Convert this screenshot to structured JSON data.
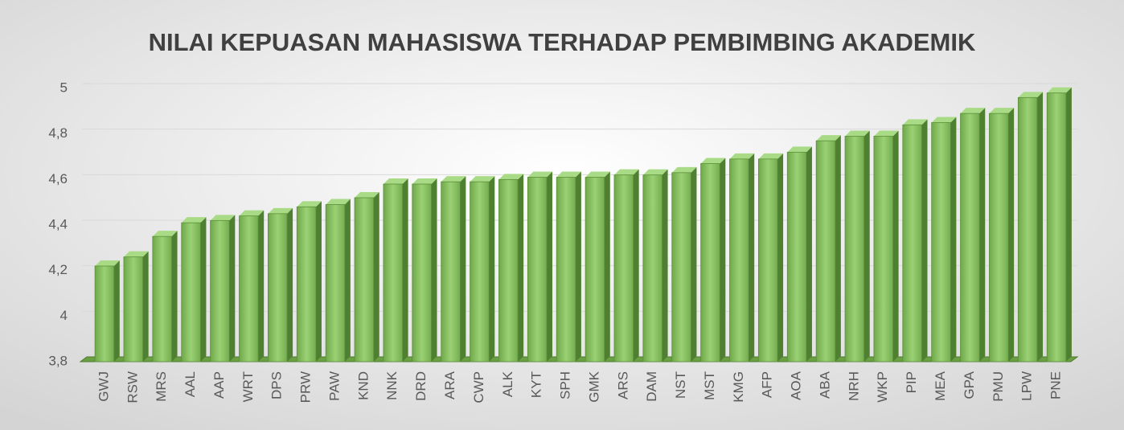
{
  "chart_data": {
    "type": "bar",
    "title": "NILAI KEPUASAN MAHASISWA TERHADAP PEMBIMBING AKADEMIK",
    "categories": [
      "GWJ",
      "RSW",
      "MRS",
      "AAL",
      "AAP",
      "WRT",
      "DPS",
      "PRW",
      "PAW",
      "KND",
      "NNK",
      "DRD",
      "ARA",
      "CWP",
      "ALK",
      "KYT",
      "SPH",
      "GMK",
      "ARS",
      "DAM",
      "NST",
      "MST",
      "KMG",
      "AFP",
      "AOA",
      "ABA",
      "NRH",
      "WKP",
      "PIP",
      "MEA",
      "GPA",
      "PMU",
      "LPW",
      "PNE"
    ],
    "values": [
      4.22,
      4.26,
      4.35,
      4.41,
      4.42,
      4.44,
      4.45,
      4.48,
      4.49,
      4.52,
      4.58,
      4.58,
      4.59,
      4.59,
      4.6,
      4.61,
      4.61,
      4.61,
      4.62,
      4.62,
      4.63,
      4.67,
      4.69,
      4.69,
      4.72,
      4.77,
      4.79,
      4.79,
      4.84,
      4.85,
      4.89,
      4.89,
      4.96,
      4.98
    ],
    "color": "#8cc466",
    "ylim": [
      3.8,
      5
    ],
    "yticks": [
      {
        "value": 3.8,
        "label": "3,8"
      },
      4,
      {
        "value": 4.2,
        "label": "4,2"
      },
      {
        "value": 4.4,
        "label": "4,4"
      },
      {
        "value": 4.6,
        "label": "4,6"
      },
      {
        "value": 4.8,
        "label": "4,8"
      },
      5
    ],
    "grid": true
  }
}
